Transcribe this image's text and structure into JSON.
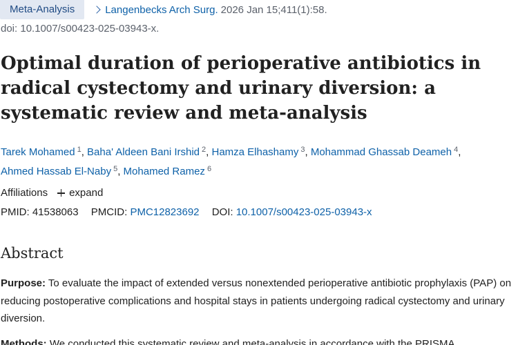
{
  "header": {
    "article_type_badge": "Meta-Analysis",
    "journal": "Langenbecks Arch Surg.",
    "citation": "2026 Jan 15;411(1):58.",
    "doi_line": "doi: 10.1007/s00423-025-03943-x."
  },
  "article": {
    "title": "Optimal duration of perioperative antibiotics in radical cystectomy and urinary diversion: a systematic review and meta-analysis",
    "authors": [
      {
        "name": "Tarek Mohamed",
        "aff": "1"
      },
      {
        "name": "Baha' Aldeen Bani Irshid",
        "aff": "2"
      },
      {
        "name": "Hamza Elhashamy",
        "aff": "3"
      },
      {
        "name": "Mohammad Ghassab Deameh",
        "aff": "4"
      },
      {
        "name": "Ahmed Hassab El-Naby",
        "aff": "5"
      },
      {
        "name": "Mohamed Ramez",
        "aff": "6"
      }
    ],
    "author_separator": ",",
    "affiliations_label": "Affiliations",
    "expand_label": "expand",
    "pmid_label": "PMID:",
    "pmid": "41538063",
    "pmcid_label": "PMCID:",
    "pmcid": "PMC12823692",
    "doi_label": "DOI:",
    "doi": "10.1007/s00423-025-03943-x"
  },
  "abstract": {
    "heading": "Abstract",
    "purpose_label": "Purpose:",
    "purpose_text": "To evaluate the impact of extended versus nonextended perioperative antibiotic prophylaxis (PAP) on reducing postoperative complications and hospital stays in patients undergoing radical cystectomy and urinary diversion.",
    "methods_label": "Methods:",
    "methods_text": "We conducted this systematic review and meta-analysis in accordance with the PRISMA"
  },
  "colors": {
    "link": "#0e61a8",
    "badge_bg": "#e2e8f2",
    "badge_text": "#204b84",
    "meta_text": "#5b616b",
    "body_text": "#212121"
  }
}
